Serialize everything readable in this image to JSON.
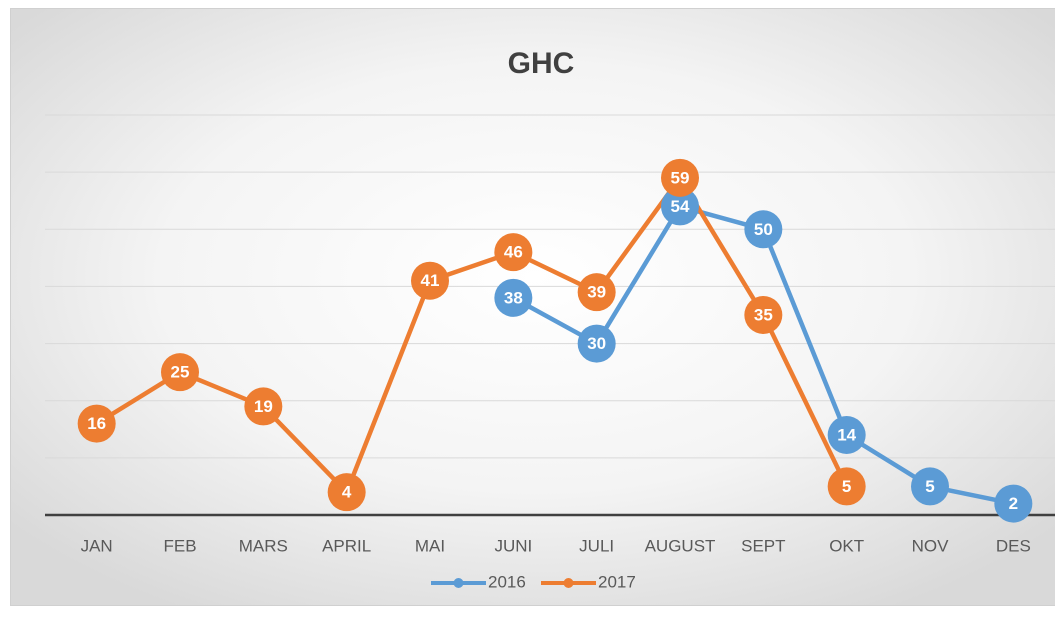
{
  "chart_data": {
    "type": "line",
    "title": "GHC",
    "categories": [
      "JAN",
      "FEB",
      "MARS",
      "APRIL",
      "MAI",
      "JUNI",
      "JULI",
      "AUGUST",
      "SEPT",
      "OKT",
      "NOV",
      "DES"
    ],
    "series": [
      {
        "name": "2016",
        "color": "#5b9bd5",
        "values": [
          null,
          null,
          null,
          null,
          null,
          38,
          30,
          54,
          50,
          14,
          5,
          2
        ]
      },
      {
        "name": "2017",
        "color": "#ed7d31",
        "values": [
          16,
          25,
          19,
          4,
          41,
          46,
          39,
          59,
          35,
          5,
          null,
          null
        ]
      }
    ],
    "ylim": [
      0,
      70
    ],
    "yticks": [
      0,
      10,
      20,
      30,
      40,
      50,
      60,
      70
    ],
    "grid": true,
    "legend": "bottom"
  }
}
